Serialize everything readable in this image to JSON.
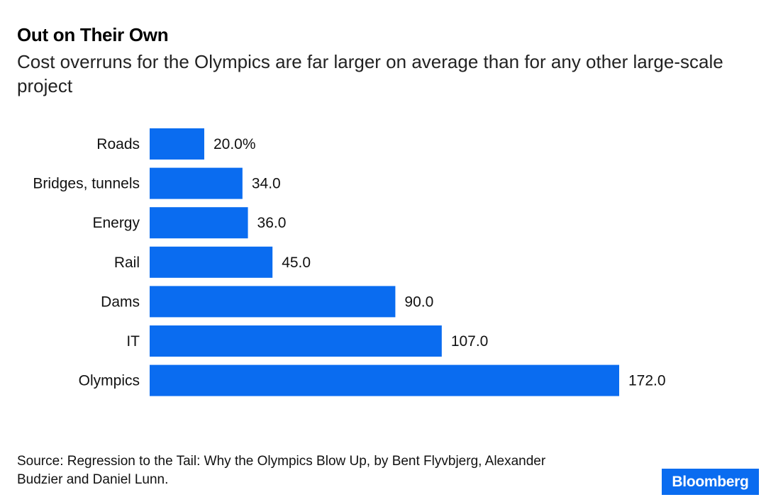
{
  "chart_data": {
    "type": "bar",
    "orientation": "horizontal",
    "title": "Out on Their Own",
    "subtitle": "Cost overruns for the Olympics are far larger on average than for any other large-scale project",
    "categories": [
      "Roads",
      "Bridges, tunnels",
      "Energy",
      "Rail",
      "Dams",
      "IT",
      "Olympics"
    ],
    "values": [
      20.0,
      34.0,
      36.0,
      45.0,
      90.0,
      107.0,
      172.0
    ],
    "data_labels": [
      "20.0%",
      "34.0",
      "36.0",
      "45.0",
      "90.0",
      "107.0",
      "172.0"
    ],
    "unit": "%",
    "xlabel": "",
    "ylabel": "",
    "grid": false,
    "bar_color": "#0a6cf0"
  },
  "source": "Source: Regression to the Tail: Why the Olympics Blow Up, by Bent Flyvbjerg, Alexander Budzier and Daniel Lunn.",
  "logo": {
    "text": "Bloomberg",
    "color": "#0a6cf0"
  }
}
